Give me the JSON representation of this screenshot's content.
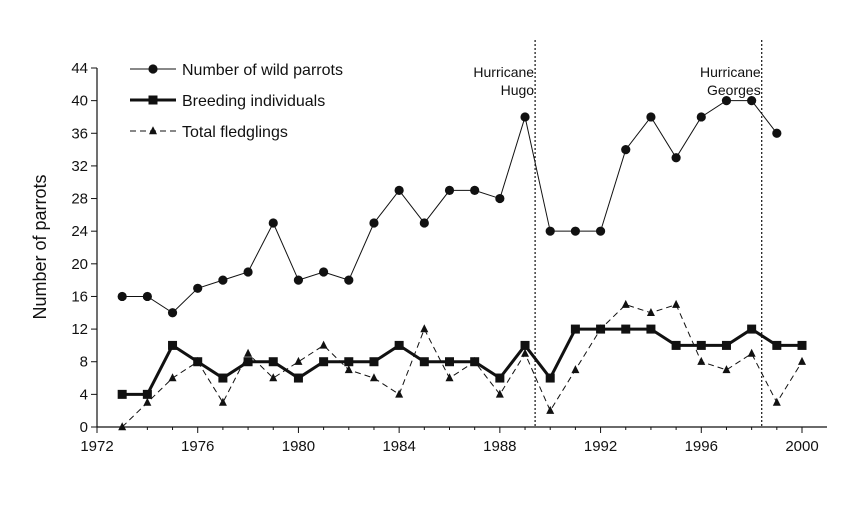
{
  "chart_data": {
    "type": "line",
    "title": "",
    "xlabel": "",
    "ylabel": "Number of parrots",
    "xlim": [
      1972,
      2000
    ],
    "ylim": [
      0,
      44
    ],
    "x_ticks": [
      1972,
      1976,
      1980,
      1984,
      1988,
      1992,
      1996,
      2000
    ],
    "y_ticks": [
      0,
      4,
      8,
      12,
      16,
      20,
      24,
      28,
      32,
      36,
      40,
      44
    ],
    "grid": false,
    "legend_position": "top-left",
    "x": [
      1973,
      1974,
      1975,
      1976,
      1977,
      1978,
      1979,
      1980,
      1981,
      1982,
      1983,
      1984,
      1985,
      1986,
      1987,
      1988,
      1989,
      1990,
      1991,
      1992,
      1993,
      1994,
      1995,
      1996,
      1997,
      1998,
      1999,
      2000
    ],
    "series": [
      {
        "name": "Number of wild parrots",
        "marker": "circle",
        "line": "solid-thin",
        "color": "#111111",
        "values": [
          16,
          16,
          14,
          17,
          18,
          19,
          25,
          18,
          19,
          18,
          25,
          29,
          25,
          29,
          29,
          28,
          38,
          24,
          24,
          24,
          34,
          38,
          33,
          38,
          40,
          40,
          36,
          null
        ]
      },
      {
        "name": "Breeding individuals",
        "marker": "square",
        "line": "solid-thick",
        "color": "#111111",
        "values": [
          4,
          4,
          10,
          8,
          6,
          8,
          8,
          6,
          8,
          8,
          8,
          10,
          8,
          8,
          8,
          6,
          10,
          6,
          12,
          12,
          12,
          12,
          10,
          10,
          10,
          12,
          10,
          10
        ]
      },
      {
        "name": "Total fledglings",
        "marker": "triangle",
        "line": "dashed",
        "color": "#111111",
        "values": [
          0,
          3,
          6,
          8,
          3,
          9,
          6,
          8,
          10,
          7,
          6,
          4,
          12,
          6,
          8,
          4,
          9,
          2,
          7,
          12,
          15,
          14,
          15,
          8,
          7,
          9,
          3,
          8
        ]
      }
    ],
    "annotations": [
      {
        "label_lines": [
          "Hurricane",
          "Hugo"
        ],
        "x": 1989.4,
        "style": "dotted-vertical-line"
      },
      {
        "label_lines": [
          "Hurricane",
          "Georges"
        ],
        "x": 1998.4,
        "style": "dotted-vertical-line"
      }
    ]
  }
}
